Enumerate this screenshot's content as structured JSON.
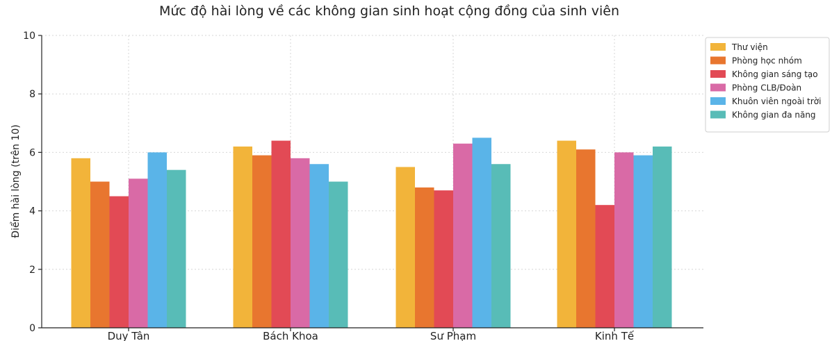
{
  "chart_data": {
    "type": "bar",
    "title": "Mức độ hài lòng về các không gian sinh hoạt cộng đồng của sinh viên",
    "xlabel": "",
    "ylabel": "Điểm hài lòng (trên 10)",
    "ylim": [
      0,
      10
    ],
    "yticks": [
      0,
      2,
      4,
      6,
      8,
      10
    ],
    "grid": true,
    "legend_position": "top-right",
    "categories": [
      "Duy Tân",
      "Bách Khoa",
      "Sư Phạm",
      "Kinh Tế"
    ],
    "series": [
      {
        "name": "Thư viện",
        "color": "#F2B43A",
        "values": [
          5.8,
          6.2,
          5.5,
          6.4
        ]
      },
      {
        "name": "Phòng học nhóm",
        "color": "#E8762F",
        "values": [
          5.0,
          5.9,
          4.8,
          6.1
        ]
      },
      {
        "name": "Không gian sáng tạo",
        "color": "#E24A55",
        "values": [
          4.5,
          6.4,
          4.7,
          4.2
        ]
      },
      {
        "name": "Phòng CLB/Đoàn",
        "color": "#D96AA6",
        "values": [
          5.1,
          5.8,
          6.3,
          6.0
        ]
      },
      {
        "name": "Khuôn viên ngoài trời",
        "color": "#5AB4E8",
        "values": [
          6.0,
          5.6,
          6.5,
          5.9
        ]
      },
      {
        "name": "Không gian đa năng",
        "color": "#58BCB7",
        "values": [
          5.4,
          5.0,
          5.6,
          6.2
        ]
      }
    ]
  }
}
